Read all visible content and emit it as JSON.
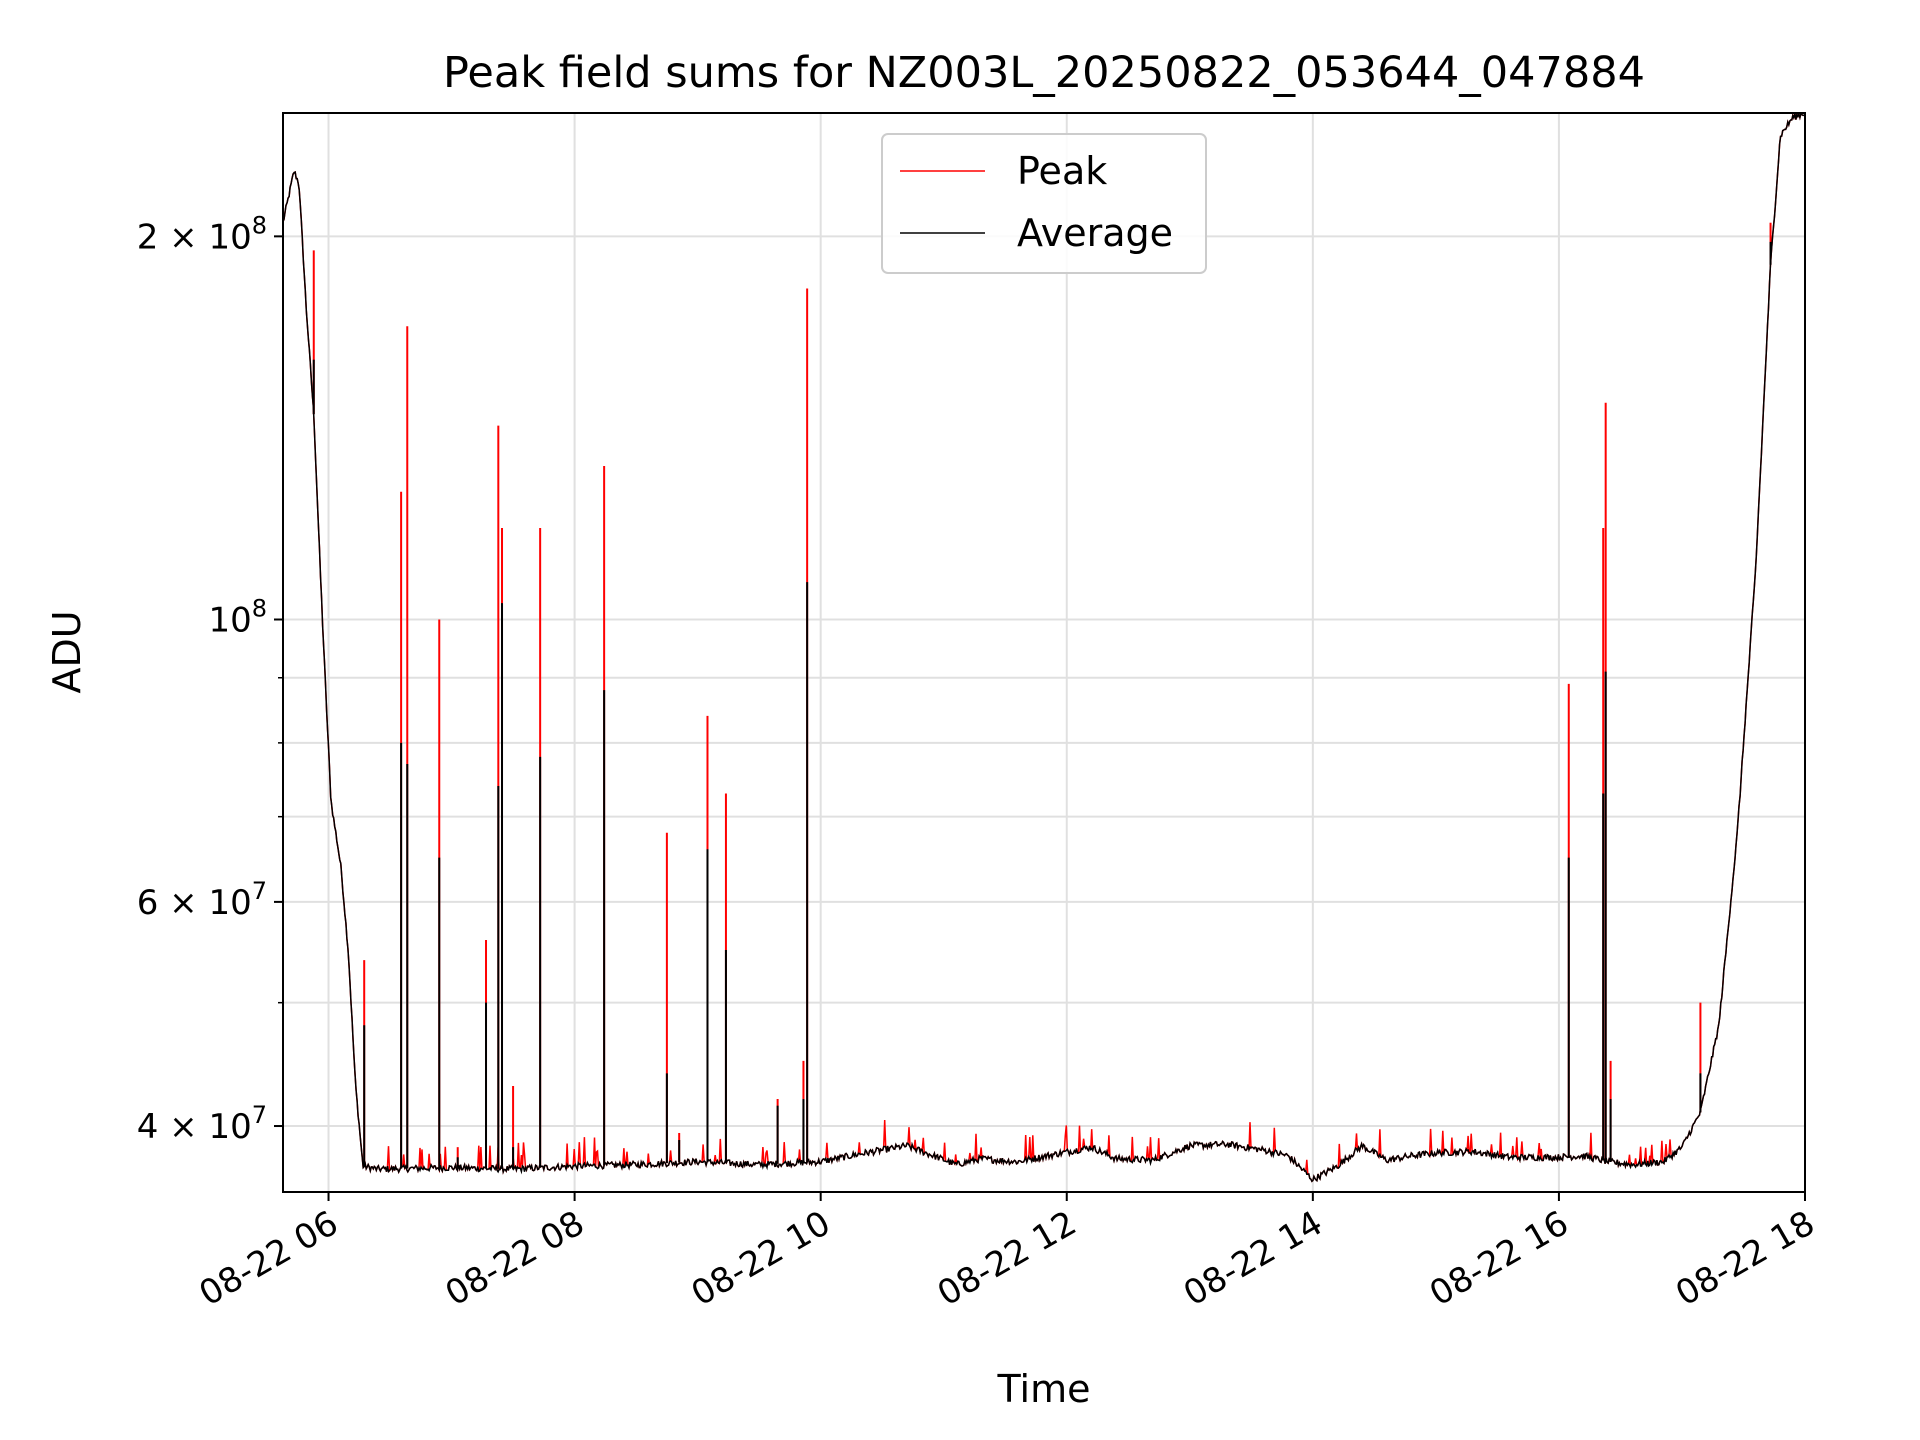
{
  "chart_data": {
    "type": "line",
    "title": "Peak field sums for NZ003L_20250822_053644_047884",
    "xlabel": "Time",
    "ylabel": "ADU",
    "x_unit": "hours on 2025-08-22",
    "y_scale": "log",
    "xlim": [
      5.63,
      18.0
    ],
    "ylim": [
      35500000,
      250000000
    ],
    "grid": true,
    "legend_position": "top-center",
    "x_tick_labels": [
      "08-22 06",
      "08-22 08",
      "08-22 10",
      "08-22 12",
      "08-22 14",
      "08-22 16",
      "08-22 18"
    ],
    "x_tick_values": [
      6,
      8,
      10,
      12,
      14,
      16,
      18
    ],
    "y_major_tick_values": [
      40000000,
      60000000,
      100000000,
      200000000
    ],
    "y_major_tick_labels": [
      {
        "base": "4 × 10",
        "exp": "7"
      },
      {
        "base": "6 × 10",
        "exp": "7"
      },
      {
        "base": "10",
        "exp": "8"
      },
      {
        "base": "2 × 10",
        "exp": "8"
      }
    ],
    "y_minor_tick_values": [
      50000000,
      70000000,
      80000000,
      90000000
    ],
    "series": [
      {
        "name": "Peak",
        "color": "#ff0000"
      },
      {
        "name": "Average",
        "color": "#000000"
      }
    ],
    "average_curve": [
      [
        5.63,
        205000000
      ],
      [
        5.72,
        225000000
      ],
      [
        5.76,
        220000000
      ],
      [
        5.82,
        175000000
      ],
      [
        5.88,
        145000000
      ],
      [
        5.95,
        100000000
      ],
      [
        6.02,
        72000000
      ],
      [
        6.1,
        64000000
      ],
      [
        6.16,
        55000000
      ],
      [
        6.22,
        43000000
      ],
      [
        6.28,
        37200000
      ],
      [
        6.4,
        37000000
      ],
      [
        7.0,
        37100000
      ],
      [
        7.5,
        37000000
      ],
      [
        8.0,
        37200000
      ],
      [
        8.5,
        37300000
      ],
      [
        9.0,
        37500000
      ],
      [
        9.5,
        37300000
      ],
      [
        10.0,
        37500000
      ],
      [
        10.3,
        38000000
      ],
      [
        10.7,
        38600000
      ],
      [
        10.95,
        37800000
      ],
      [
        11.1,
        37300000
      ],
      [
        11.3,
        37700000
      ],
      [
        11.6,
        37500000
      ],
      [
        11.9,
        38000000
      ],
      [
        12.2,
        38500000
      ],
      [
        12.4,
        37700000
      ],
      [
        12.7,
        37600000
      ],
      [
        13.0,
        38600000
      ],
      [
        13.3,
        38700000
      ],
      [
        13.6,
        38300000
      ],
      [
        13.8,
        37900000
      ],
      [
        14.0,
        36300000
      ],
      [
        14.2,
        37200000
      ],
      [
        14.4,
        38600000
      ],
      [
        14.6,
        37600000
      ],
      [
        14.8,
        37900000
      ],
      [
        15.0,
        38100000
      ],
      [
        15.3,
        38200000
      ],
      [
        15.6,
        37800000
      ],
      [
        16.0,
        37800000
      ],
      [
        16.2,
        37900000
      ],
      [
        16.4,
        37500000
      ],
      [
        16.6,
        37300000
      ],
      [
        16.85,
        37500000
      ],
      [
        17.0,
        38500000
      ],
      [
        17.15,
        41000000
      ],
      [
        17.3,
        48000000
      ],
      [
        17.45,
        68000000
      ],
      [
        17.6,
        110000000
      ],
      [
        17.72,
        190000000
      ],
      [
        17.8,
        240000000
      ],
      [
        17.9,
        248000000
      ],
      [
        18.0,
        250000000
      ]
    ],
    "spikes": [
      {
        "x": 5.88,
        "peak": 195000000,
        "average": 160000000
      },
      {
        "x": 6.29,
        "peak": 54000000,
        "average": 48000000
      },
      {
        "x": 6.59,
        "peak": 126000000,
        "average": 80000000
      },
      {
        "x": 6.64,
        "peak": 170000000,
        "average": 77000000
      },
      {
        "x": 6.9,
        "peak": 100000000,
        "average": 65000000
      },
      {
        "x": 7.05,
        "peak": 38500000,
        "average": 37800000
      },
      {
        "x": 7.28,
        "peak": 56000000,
        "average": 50000000
      },
      {
        "x": 7.38,
        "peak": 142000000,
        "average": 74000000
      },
      {
        "x": 7.41,
        "peak": 118000000,
        "average": 103000000
      },
      {
        "x": 7.5,
        "peak": 43000000,
        "average": 38500000
      },
      {
        "x": 7.72,
        "peak": 118000000,
        "average": 78000000
      },
      {
        "x": 8.24,
        "peak": 132000000,
        "average": 88000000
      },
      {
        "x": 8.75,
        "peak": 68000000,
        "average": 44000000
      },
      {
        "x": 8.85,
        "peak": 39500000,
        "average": 39000000
      },
      {
        "x": 9.08,
        "peak": 84000000,
        "average": 66000000
      },
      {
        "x": 9.23,
        "peak": 73000000,
        "average": 55000000
      },
      {
        "x": 9.65,
        "peak": 42000000,
        "average": 41500000
      },
      {
        "x": 9.86,
        "peak": 45000000,
        "average": 42000000
      },
      {
        "x": 9.89,
        "peak": 182000000,
        "average": 107000000
      },
      {
        "x": 16.08,
        "peak": 89000000,
        "average": 65000000
      },
      {
        "x": 16.36,
        "peak": 118000000,
        "average": 73000000
      },
      {
        "x": 16.38,
        "peak": 148000000,
        "average": 91000000
      },
      {
        "x": 16.42,
        "peak": 45000000,
        "average": 42000000
      },
      {
        "x": 17.15,
        "peak": 50000000,
        "average": 44000000
      },
      {
        "x": 17.72,
        "peak": 205000000,
        "average": 198000000
      }
    ]
  }
}
